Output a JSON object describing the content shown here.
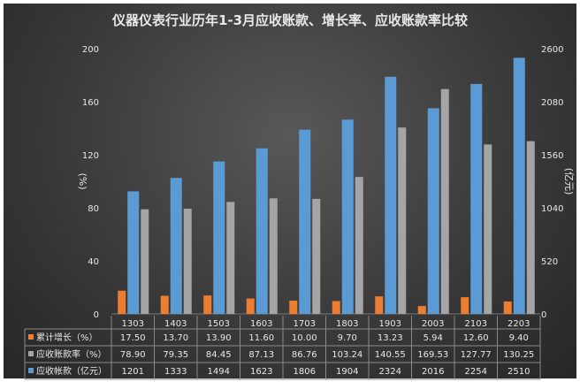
{
  "chart_data": {
    "type": "bar",
    "title": "仪器仪表行业历年1-3月应收账款、增长率、应收账款率比较",
    "categories": [
      "1303",
      "1403",
      "1503",
      "1603",
      "1703",
      "1803",
      "1903",
      "2003",
      "2103",
      "2203"
    ],
    "ylabel": "(%)",
    "y2label": "(亿元)",
    "ylim": [
      0,
      200
    ],
    "y2lim": [
      0,
      2600
    ],
    "yticks": [
      0,
      40,
      80,
      120,
      160,
      200
    ],
    "y2ticks": [
      0,
      520,
      1040,
      1560,
      2080,
      2600
    ],
    "grid": false,
    "legend": "table-below",
    "series": [
      {
        "name": "累计增长（%）",
        "axis": "left",
        "color": "#ed7d31",
        "labels": [
          "17.50",
          "13.70",
          "13.90",
          "11.60",
          "10.00",
          "9.70",
          "13.23",
          "5.94",
          "12.60",
          "9.40"
        ],
        "values": [
          17.5,
          13.7,
          13.9,
          11.6,
          10.0,
          9.7,
          13.23,
          5.94,
          12.6,
          9.4
        ]
      },
      {
        "name": "应收账款率（%）",
        "axis": "left",
        "color": "#a5a5a5",
        "labels": [
          "78.90",
          "79.35",
          "84.45",
          "87.13",
          "86.76",
          "103.24",
          "140.55",
          "169.53",
          "127.77",
          "130.25"
        ],
        "values": [
          78.9,
          79.35,
          84.45,
          87.13,
          86.76,
          103.24,
          140.55,
          169.53,
          127.77,
          130.25
        ]
      },
      {
        "name": "应收帐款（亿元）",
        "axis": "right",
        "color": "#5b9bd5",
        "labels": [
          "1201",
          "1333",
          "1494",
          "1623",
          "1806",
          "1904",
          "2324",
          "2016",
          "2254",
          "2510"
        ],
        "values": [
          1201,
          1333,
          1494,
          1623,
          1806,
          1904,
          2324,
          2016,
          2254,
          2510
        ]
      }
    ]
  }
}
